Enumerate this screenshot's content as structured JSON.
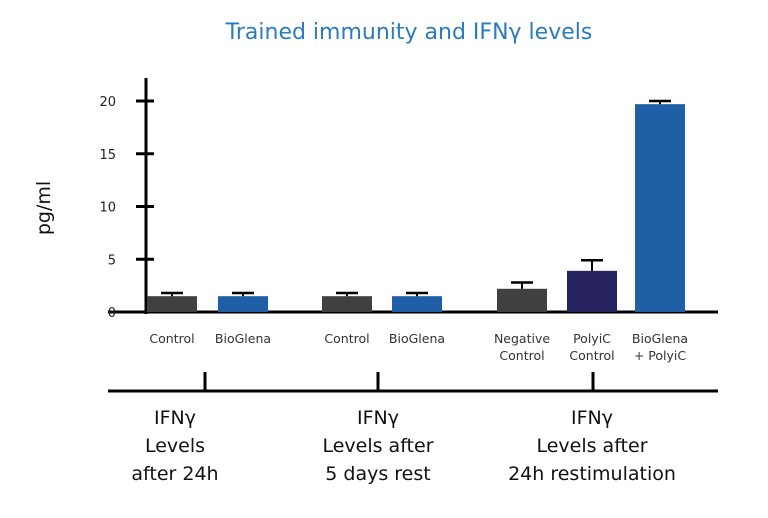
{
  "chart_data": {
    "type": "bar",
    "title": "Trained immunity and IFNγ levels",
    "ylabel": "pg/ml",
    "xlabel": "",
    "ylim": [
      0,
      20
    ],
    "yticks": [
      0,
      5,
      10,
      15,
      20
    ],
    "grid": false,
    "categories": [
      [
        "Control"
      ],
      [
        "BioGlena"
      ],
      [
        "Control"
      ],
      [
        "BioGlena"
      ],
      [
        "Negative",
        "Control"
      ],
      [
        "PolyiC",
        "Control"
      ],
      [
        "BioGlena",
        "+ PolyiC"
      ]
    ],
    "values": [
      1.5,
      1.5,
      1.5,
      1.5,
      2.2,
      3.9,
      19.7
    ],
    "error_upper": [
      1.8,
      1.8,
      1.8,
      1.8,
      2.8,
      4.9,
      20.0
    ],
    "bar_colors": [
      "#404040",
      "#1f5fa5",
      "#404040",
      "#1f5fa5",
      "#404040",
      "#27235f",
      "#1f5fa5"
    ],
    "groups": [
      {
        "lines": [
          "IFNγ",
          "Levels",
          "after 24h"
        ],
        "bars": [
          0,
          1
        ]
      },
      {
        "lines": [
          "IFNγ",
          "Levels after",
          "5 days rest"
        ],
        "bars": [
          2,
          3
        ]
      },
      {
        "lines": [
          "IFNγ",
          "Levels after",
          "24h restimulation"
        ],
        "bars": [
          4,
          5,
          6
        ]
      }
    ],
    "title_color": "#2b7bbf"
  }
}
